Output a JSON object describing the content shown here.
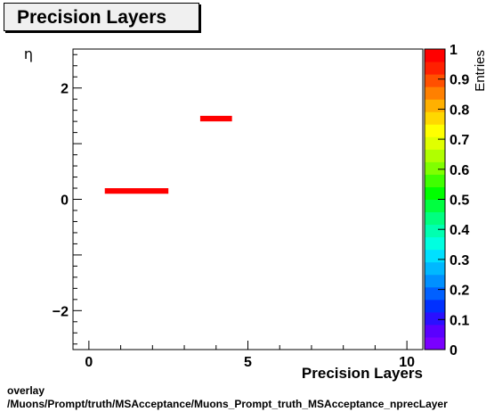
{
  "title": "Precision Layers",
  "footer": {
    "line1": "overlay",
    "line2": "/Muons/Prompt/truth/MSAcceptance/Muons_Prompt_truth_MSAcceptance_nprecLayer"
  },
  "chart_data": {
    "type": "heatmap",
    "title": "Precision Layers",
    "xlabel": "Precision Layers",
    "ylabel": "η",
    "zlabel": "Entries",
    "xlim": [
      -0.5,
      10.5
    ],
    "ylim": [
      -2.7,
      2.7
    ],
    "zlim": [
      0,
      1
    ],
    "x_ticks": [
      0,
      5,
      10
    ],
    "y_ticks": [
      -2,
      0,
      2
    ],
    "z_ticks": [
      "0",
      "0.1",
      "0.2",
      "0.3",
      "0.4",
      "0.5",
      "0.6",
      "0.7",
      "0.8",
      "0.9",
      "1"
    ],
    "cells": [
      {
        "x0": 0.5,
        "x1": 2.5,
        "y0": 0.1,
        "y1": 0.2,
        "value": 1
      },
      {
        "x0": 3.5,
        "x1": 4.5,
        "y0": 1.4,
        "y1": 1.5,
        "value": 1
      }
    ],
    "palette": [
      "#7a00ff",
      "#5a00ff",
      "#2a10ff",
      "#0030ff",
      "#0060ff",
      "#0090ff",
      "#00b8ff",
      "#00e0ff",
      "#00ffe0",
      "#00ffb0",
      "#00ff80",
      "#00ff40",
      "#00ff00",
      "#40ff00",
      "#80ff00",
      "#b0ff00",
      "#e0ff00",
      "#ffff00",
      "#ffd800",
      "#ffb000",
      "#ff8000",
      "#ff5000",
      "#ff2000",
      "#ff0000"
    ],
    "cell_color": "#ff0000"
  }
}
